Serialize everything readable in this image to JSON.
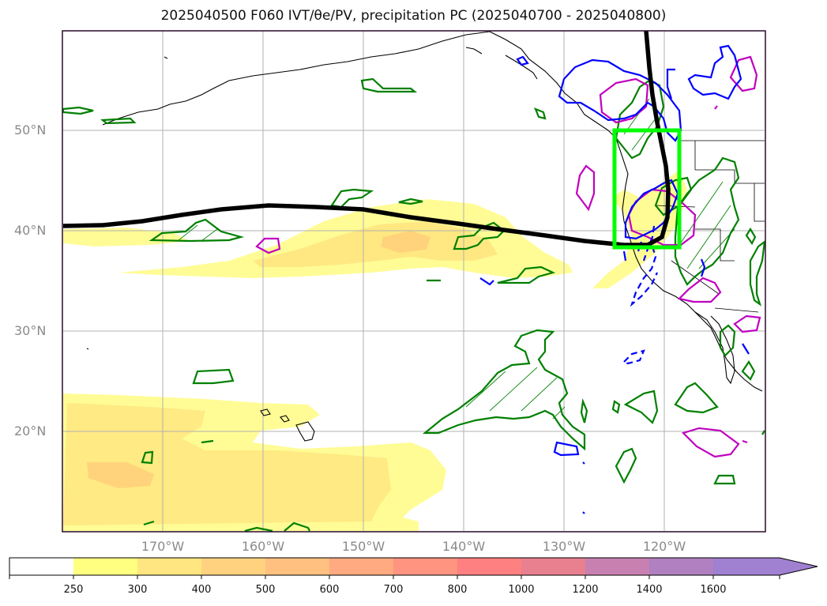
{
  "title": "2025040500 F060 IVT/θe/PV, precipitation PC (2025040700 - 2025040800)",
  "map": {
    "lat_labels": [
      "50°N",
      "40°N",
      "30°N",
      "20°N"
    ],
    "lon_labels": [
      "170°W",
      "160°W",
      "150°W",
      "140°W",
      "130°W",
      "120°W"
    ],
    "region": "North Pacific (10°N–60°N, 180°–110°W)",
    "box_color": "#00ff00",
    "theta_e_color": "#000000",
    "pv_color": "#0000ff",
    "precip_pos_color": "#008000",
    "precip_neg_color": "#c000c0"
  },
  "colorbar": {
    "ticks": [
      "250",
      "300",
      "400",
      "500",
      "600",
      "700",
      "800",
      "1000",
      "1200",
      "1400",
      "1600"
    ],
    "colors": [
      "#ffffff",
      "#ffff80",
      "#ffe680",
      "#ffd280",
      "#ffc080",
      "#ffaa80",
      "#ff9480",
      "#ff8080",
      "#e88090",
      "#c880b0",
      "#b080c0",
      "#a080d0"
    ],
    "extend": "max"
  }
}
